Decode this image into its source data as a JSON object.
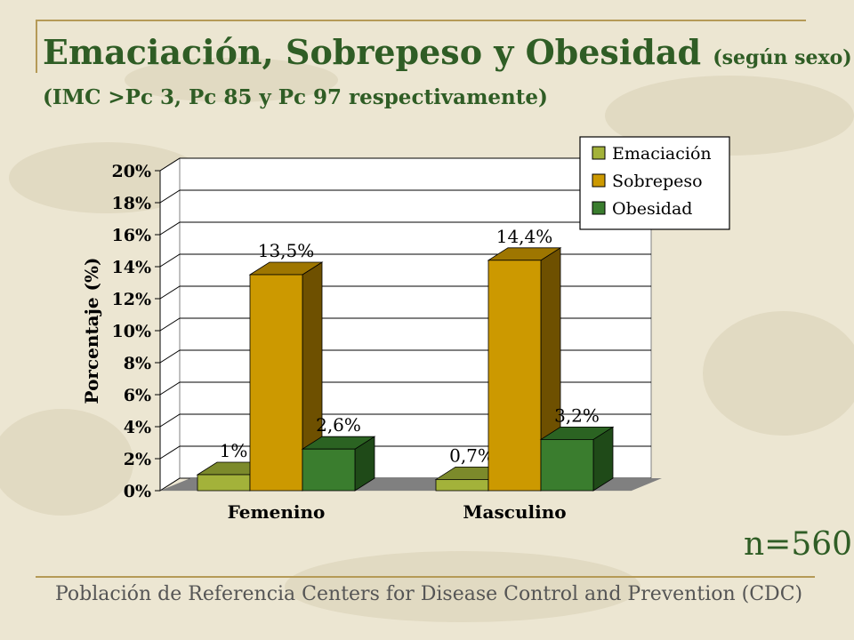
{
  "slide": {
    "title_main": "Emaciación, Sobrepeso y Obesidad",
    "title_suffix": "(según sexo)",
    "subtitle": "(IMC >Pc 3, Pc 85 y Pc 97 respectivamente)",
    "sample_size": "n=560",
    "footer": "Población de Referencia Centers for Disease Control and Prevention (CDC)"
  },
  "colors": {
    "title": "#2f5d25",
    "background": "#ece6d2",
    "rule": "#b59a57"
  },
  "chart_data": {
    "type": "bar",
    "style": "3d-clustered",
    "title": "",
    "xlabel": "",
    "ylabel": "Porcentaje (%)",
    "ylim": [
      0,
      20
    ],
    "yticks": [
      "0%",
      "2%",
      "4%",
      "6%",
      "8%",
      "10%",
      "12%",
      "14%",
      "16%",
      "18%",
      "20%"
    ],
    "grid": true,
    "legend_position": "top-right",
    "categories": [
      "Femenino",
      "Masculino"
    ],
    "series": [
      {
        "name": "Emaciación",
        "values": [
          1.0,
          0.7
        ],
        "labels": [
          "1%",
          "0,7%"
        ],
        "color": "#a3b23a",
        "side_color": "#5d6720",
        "top_color": "#7c8a2b"
      },
      {
        "name": "Sobrepeso",
        "values": [
          13.5,
          14.4
        ],
        "labels": [
          "13,5%",
          "14,4%"
        ],
        "color": "#cc9900",
        "side_color": "#6e5000",
        "top_color": "#9e7600"
      },
      {
        "name": "Obesidad",
        "values": [
          2.6,
          3.2
        ],
        "labels": [
          "2,6%",
          "3,2%"
        ],
        "color": "#3a7d2e",
        "side_color": "#1f4a18",
        "top_color": "#2b6322"
      }
    ]
  }
}
